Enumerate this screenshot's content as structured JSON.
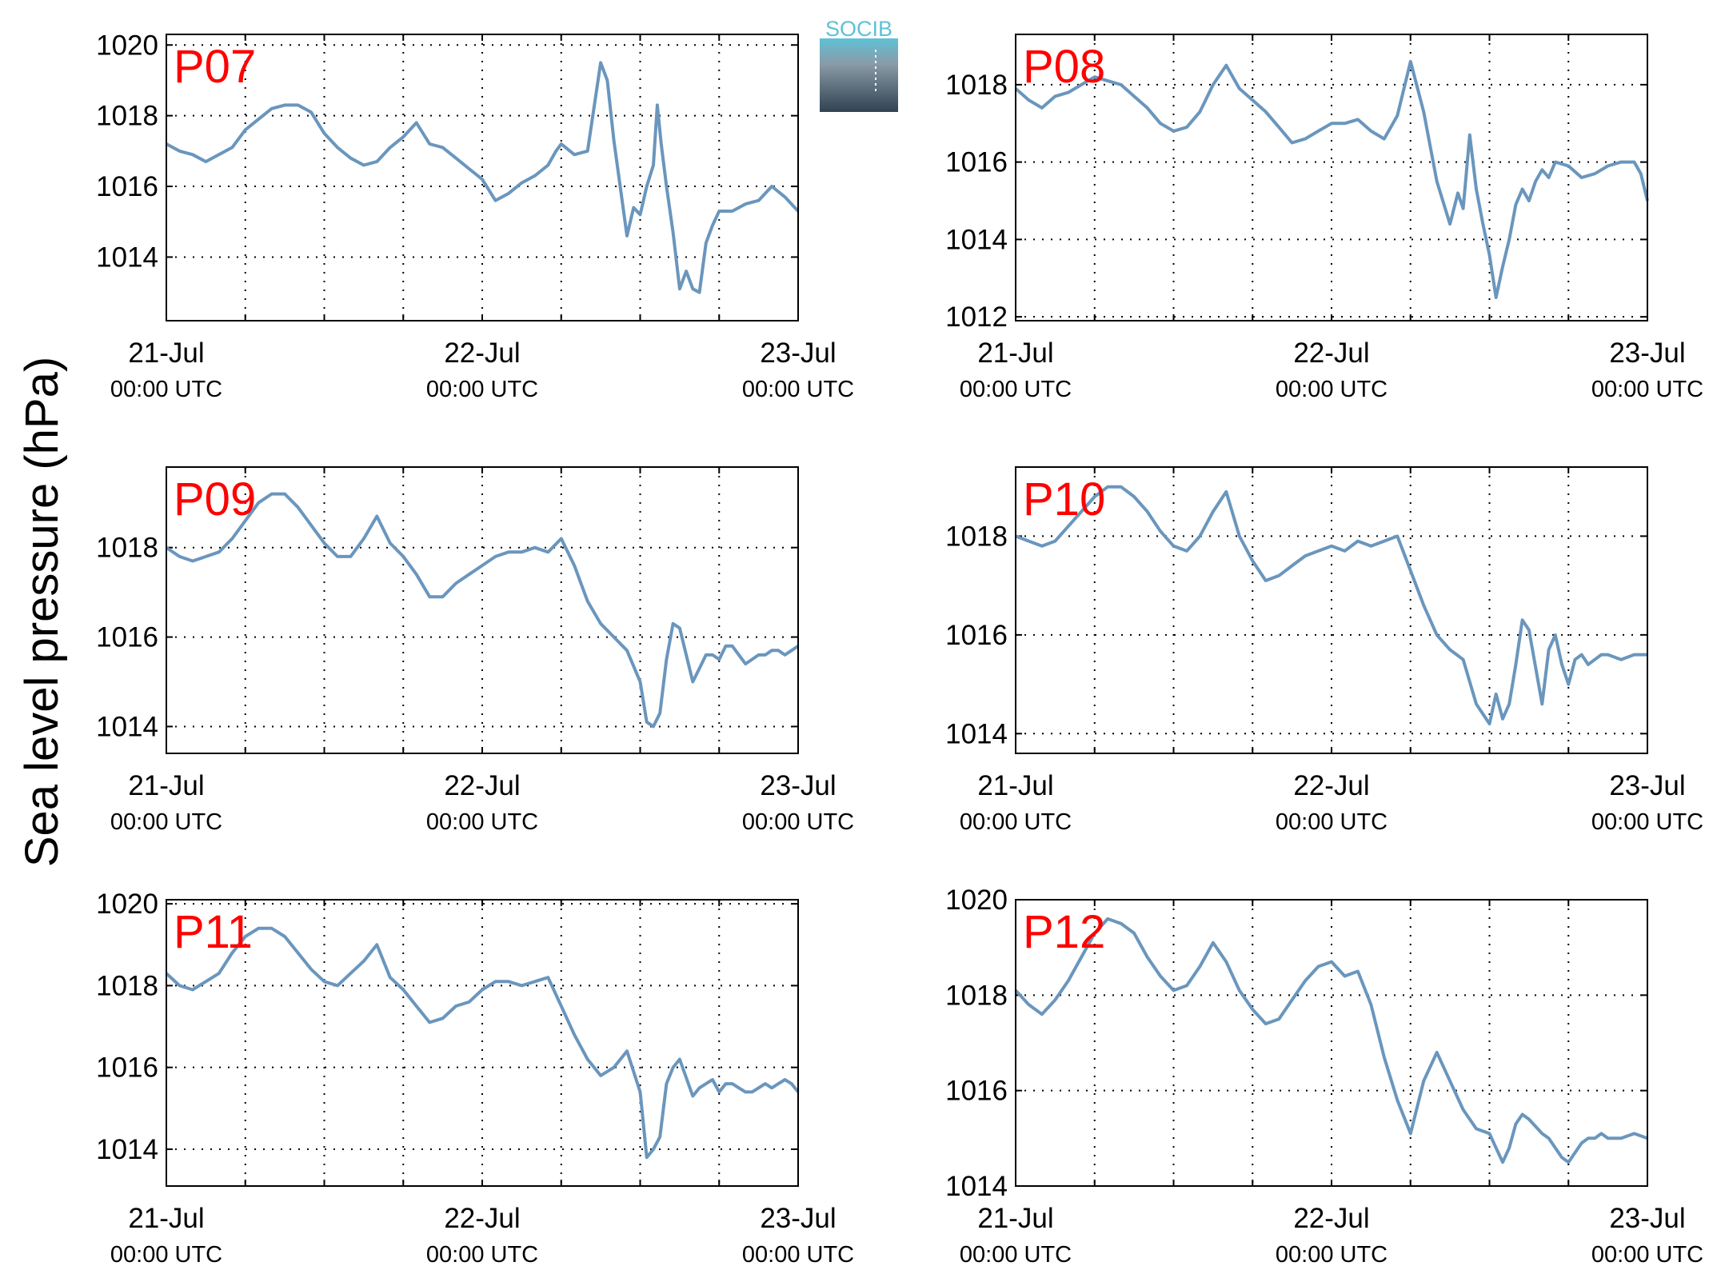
{
  "figure": {
    "ylabel": "Sea level pressure (hPa)",
    "logo_text": "SOCIB",
    "colors": {
      "line": "#6a96bd",
      "panel_label": "#ff0000",
      "axis": "#000000",
      "grid": "#000000",
      "logo_top": "#5fc1d6",
      "logo_bottom": "#2f4352"
    }
  },
  "chart_data": [
    {
      "type": "line",
      "title": "P07",
      "x_ticks": [
        {
          "day": "21-Jul",
          "time": "00:00 UTC"
        },
        {
          "day": "22-Jul",
          "time": "00:00 UTC"
        },
        {
          "day": "23-Jul",
          "time": "00:00 UTC"
        }
      ],
      "xlim": [
        0,
        48
      ],
      "ylim": [
        1012.2,
        1020.3
      ],
      "y_ticks": [
        1014,
        1016,
        1018,
        1020
      ],
      "grid": true,
      "series": [
        {
          "x": [
            0,
            1,
            2,
            3,
            4,
            5,
            6,
            7,
            8,
            9,
            10,
            11,
            12,
            13,
            14,
            15,
            16,
            17,
            18,
            19,
            20,
            21,
            22,
            23,
            24,
            25,
            26,
            27,
            28,
            29,
            29.6,
            30,
            31,
            32,
            33,
            33.5,
            34,
            35,
            35.5,
            36,
            36.5,
            37,
            37.3,
            37.6,
            38,
            38.5,
            39,
            39.5,
            40,
            40.5,
            41,
            41.5,
            42,
            43,
            44,
            45,
            46,
            47,
            48
          ],
          "y": [
            1017.2,
            1017.0,
            1016.9,
            1016.7,
            1016.9,
            1017.1,
            1017.6,
            1017.9,
            1018.2,
            1018.3,
            1018.3,
            1018.1,
            1017.5,
            1017.1,
            1016.8,
            1016.6,
            1016.7,
            1017.1,
            1017.4,
            1017.8,
            1017.2,
            1017.1,
            1016.8,
            1016.5,
            1016.2,
            1015.6,
            1015.8,
            1016.1,
            1016.3,
            1016.6,
            1017.0,
            1017.2,
            1016.9,
            1017.0,
            1019.5,
            1019.0,
            1017.3,
            1014.6,
            1015.4,
            1015.2,
            1016.0,
            1016.6,
            1018.3,
            1017.2,
            1016.0,
            1014.7,
            1013.1,
            1013.6,
            1013.1,
            1013.0,
            1014.4,
            1014.9,
            1015.3,
            1015.3,
            1015.5,
            1015.6,
            1016.0,
            1015.7,
            1015.3
          ]
        }
      ]
    },
    {
      "type": "line",
      "title": "P08",
      "x_ticks": [
        {
          "day": "21-Jul",
          "time": "00:00 UTC"
        },
        {
          "day": "22-Jul",
          "time": "00:00 UTC"
        },
        {
          "day": "23-Jul",
          "time": "00:00 UTC"
        }
      ],
      "xlim": [
        0,
        48
      ],
      "ylim": [
        1011.9,
        1019.3
      ],
      "y_ticks": [
        1012,
        1014,
        1016,
        1018
      ],
      "grid": true,
      "series": [
        {
          "x": [
            0,
            1,
            2,
            3,
            4,
            5,
            6,
            7,
            8,
            9,
            10,
            11,
            12,
            13,
            14,
            15,
            16,
            17,
            18,
            19,
            20,
            21,
            22,
            23,
            24,
            25,
            26,
            27,
            28,
            29,
            30,
            31,
            32,
            33,
            33.6,
            34,
            34.5,
            35,
            35.5,
            36,
            36.5,
            37,
            37.5,
            38,
            38.5,
            39,
            39.5,
            40,
            40.5,
            41,
            42,
            43,
            44,
            45,
            46,
            47,
            47.5,
            48
          ],
          "y": [
            1017.9,
            1017.6,
            1017.4,
            1017.7,
            1017.8,
            1018.0,
            1018.2,
            1018.1,
            1018.0,
            1017.7,
            1017.4,
            1017.0,
            1016.8,
            1016.9,
            1017.3,
            1018.0,
            1018.5,
            1017.9,
            1017.6,
            1017.3,
            1016.9,
            1016.5,
            1016.6,
            1016.8,
            1017.0,
            1017.0,
            1017.1,
            1016.8,
            1016.6,
            1017.2,
            1018.6,
            1017.3,
            1015.5,
            1014.4,
            1015.2,
            1014.8,
            1016.7,
            1015.3,
            1014.4,
            1013.6,
            1012.5,
            1013.3,
            1014.0,
            1014.9,
            1015.3,
            1015.0,
            1015.5,
            1015.8,
            1015.6,
            1016.0,
            1015.9,
            1015.6,
            1015.7,
            1015.9,
            1016.0,
            1016.0,
            1015.7,
            1015.0
          ]
        }
      ]
    },
    {
      "type": "line",
      "title": "P09",
      "x_ticks": [
        {
          "day": "21-Jul",
          "time": "00:00 UTC"
        },
        {
          "day": "22-Jul",
          "time": "00:00 UTC"
        },
        {
          "day": "23-Jul",
          "time": "00:00 UTC"
        }
      ],
      "xlim": [
        0,
        48
      ],
      "ylim": [
        1013.4,
        1019.8
      ],
      "y_ticks": [
        1014,
        1016,
        1018
      ],
      "grid": true,
      "series": [
        {
          "x": [
            0,
            1,
            2,
            3,
            4,
            5,
            6,
            7,
            8,
            9,
            10,
            11,
            12,
            13,
            14,
            15,
            16,
            17,
            18,
            19,
            20,
            21,
            22,
            23,
            24,
            25,
            26,
            27,
            28,
            29,
            30,
            31,
            32,
            33,
            34,
            35,
            36,
            36.5,
            37,
            37.5,
            38,
            38.5,
            39,
            40,
            40.5,
            41,
            41.5,
            42,
            42.5,
            43,
            43.5,
            44,
            44.5,
            45,
            45.5,
            46,
            46.5,
            47,
            47.5,
            48
          ],
          "y": [
            1018.0,
            1017.8,
            1017.7,
            1017.8,
            1017.9,
            1018.2,
            1018.6,
            1019.0,
            1019.2,
            1019.2,
            1018.9,
            1018.5,
            1018.1,
            1017.8,
            1017.8,
            1018.2,
            1018.7,
            1018.1,
            1017.8,
            1017.4,
            1016.9,
            1016.9,
            1017.2,
            1017.4,
            1017.6,
            1017.8,
            1017.9,
            1017.9,
            1018.0,
            1017.9,
            1018.2,
            1017.6,
            1016.8,
            1016.3,
            1016.0,
            1015.7,
            1015.0,
            1014.1,
            1014.0,
            1014.3,
            1015.5,
            1016.3,
            1016.2,
            1015.0,
            1015.3,
            1015.6,
            1015.6,
            1015.5,
            1015.8,
            1015.8,
            1015.6,
            1015.4,
            1015.5,
            1015.6,
            1015.6,
            1015.7,
            1015.7,
            1015.6,
            1015.7,
            1015.8
          ]
        }
      ]
    },
    {
      "type": "line",
      "title": "P10",
      "x_ticks": [
        {
          "day": "21-Jul",
          "time": "00:00 UTC"
        },
        {
          "day": "22-Jul",
          "time": "00:00 UTC"
        },
        {
          "day": "23-Jul",
          "time": "00:00 UTC"
        }
      ],
      "xlim": [
        0,
        48
      ],
      "ylim": [
        1013.6,
        1019.4
      ],
      "y_ticks": [
        1014,
        1016,
        1018
      ],
      "grid": true,
      "series": [
        {
          "x": [
            0,
            1,
            2,
            3,
            4,
            5,
            6,
            7,
            8,
            9,
            10,
            11,
            12,
            13,
            14,
            15,
            16,
            17,
            18,
            19,
            20,
            21,
            22,
            23,
            24,
            25,
            26,
            27,
            28,
            29,
            30,
            31,
            32,
            33,
            34,
            35,
            36,
            36.5,
            37,
            37.5,
            38,
            38.5,
            39,
            40,
            40.5,
            41,
            41.5,
            42,
            42.5,
            43,
            43.5,
            44,
            44.5,
            45,
            46,
            47,
            48
          ],
          "y": [
            1018.0,
            1017.9,
            1017.8,
            1017.9,
            1018.2,
            1018.5,
            1018.8,
            1019.0,
            1019.0,
            1018.8,
            1018.5,
            1018.1,
            1017.8,
            1017.7,
            1018.0,
            1018.5,
            1018.9,
            1018.0,
            1017.5,
            1017.1,
            1017.2,
            1017.4,
            1017.6,
            1017.7,
            1017.8,
            1017.7,
            1017.9,
            1017.8,
            1017.9,
            1018.0,
            1017.3,
            1016.6,
            1016.0,
            1015.7,
            1015.5,
            1014.6,
            1014.2,
            1014.8,
            1014.3,
            1014.6,
            1015.4,
            1016.3,
            1016.1,
            1014.6,
            1015.7,
            1016.0,
            1015.4,
            1015.0,
            1015.5,
            1015.6,
            1015.4,
            1015.5,
            1015.6,
            1015.6,
            1015.5,
            1015.6,
            1015.6
          ]
        }
      ]
    },
    {
      "type": "line",
      "title": "P11",
      "x_ticks": [
        {
          "day": "21-Jul",
          "time": "00:00 UTC"
        },
        {
          "day": "22-Jul",
          "time": "00:00 UTC"
        },
        {
          "day": "23-Jul",
          "time": "00:00 UTC"
        }
      ],
      "xlim": [
        0,
        48
      ],
      "ylim": [
        1013.1,
        1020.1
      ],
      "y_ticks": [
        1014,
        1016,
        1018,
        1020
      ],
      "grid": true,
      "series": [
        {
          "x": [
            0,
            1,
            2,
            3,
            4,
            5,
            6,
            7,
            8,
            9,
            10,
            11,
            12,
            13,
            14,
            15,
            16,
            17,
            18,
            19,
            20,
            21,
            22,
            23,
            24,
            25,
            26,
            27,
            28,
            29,
            30,
            31,
            32,
            33,
            34,
            35,
            36,
            36.5,
            37,
            37.5,
            38,
            38.5,
            39,
            40,
            40.5,
            41,
            41.5,
            42,
            42.5,
            43,
            43.5,
            44,
            44.5,
            45,
            45.5,
            46,
            46.5,
            47,
            47.5,
            48
          ],
          "y": [
            1018.3,
            1018.0,
            1017.9,
            1018.1,
            1018.3,
            1018.8,
            1019.2,
            1019.4,
            1019.4,
            1019.2,
            1018.8,
            1018.4,
            1018.1,
            1018.0,
            1018.3,
            1018.6,
            1019.0,
            1018.2,
            1017.9,
            1017.5,
            1017.1,
            1017.2,
            1017.5,
            1017.6,
            1017.9,
            1018.1,
            1018.1,
            1018.0,
            1018.1,
            1018.2,
            1017.5,
            1016.8,
            1016.2,
            1015.8,
            1016.0,
            1016.4,
            1015.4,
            1013.8,
            1014.0,
            1014.3,
            1015.6,
            1016.0,
            1016.2,
            1015.3,
            1015.5,
            1015.6,
            1015.7,
            1015.4,
            1015.6,
            1015.6,
            1015.5,
            1015.4,
            1015.4,
            1015.5,
            1015.6,
            1015.5,
            1015.6,
            1015.7,
            1015.6,
            1015.4
          ]
        }
      ]
    },
    {
      "type": "line",
      "title": "P12",
      "x_ticks": [
        {
          "day": "21-Jul",
          "time": "00:00 UTC"
        },
        {
          "day": "22-Jul",
          "time": "00:00 UTC"
        },
        {
          "day": "23-Jul",
          "time": "00:00 UTC"
        }
      ],
      "xlim": [
        0,
        48
      ],
      "ylim": [
        1014.0,
        1020.0
      ],
      "y_ticks": [
        1014,
        1016,
        1018,
        1020
      ],
      "grid": true,
      "series": [
        {
          "x": [
            0,
            1,
            2,
            3,
            4,
            5,
            6,
            7,
            8,
            9,
            10,
            11,
            12,
            13,
            14,
            15,
            16,
            17,
            18,
            19,
            20,
            21,
            22,
            23,
            24,
            25,
            26,
            27,
            28,
            29,
            30,
            31,
            32,
            33,
            34,
            35,
            36,
            36.5,
            37,
            37.5,
            38,
            38.5,
            39,
            40,
            40.5,
            41,
            41.5,
            42,
            42.5,
            43,
            43.5,
            44,
            44.5,
            45,
            46,
            47,
            48
          ],
          "y": [
            1018.1,
            1017.8,
            1017.6,
            1017.9,
            1018.3,
            1018.8,
            1019.3,
            1019.6,
            1019.5,
            1019.3,
            1018.8,
            1018.4,
            1018.1,
            1018.2,
            1018.6,
            1019.1,
            1018.7,
            1018.1,
            1017.7,
            1017.4,
            1017.5,
            1017.9,
            1018.3,
            1018.6,
            1018.7,
            1018.4,
            1018.5,
            1017.8,
            1016.7,
            1015.8,
            1015.1,
            1016.2,
            1016.8,
            1016.2,
            1015.6,
            1015.2,
            1015.1,
            1014.8,
            1014.5,
            1014.8,
            1015.3,
            1015.5,
            1015.4,
            1015.1,
            1015.0,
            1014.8,
            1014.6,
            1014.5,
            1014.7,
            1014.9,
            1015.0,
            1015.0,
            1015.1,
            1015.0,
            1015.0,
            1015.1,
            1015.0
          ]
        }
      ]
    }
  ]
}
